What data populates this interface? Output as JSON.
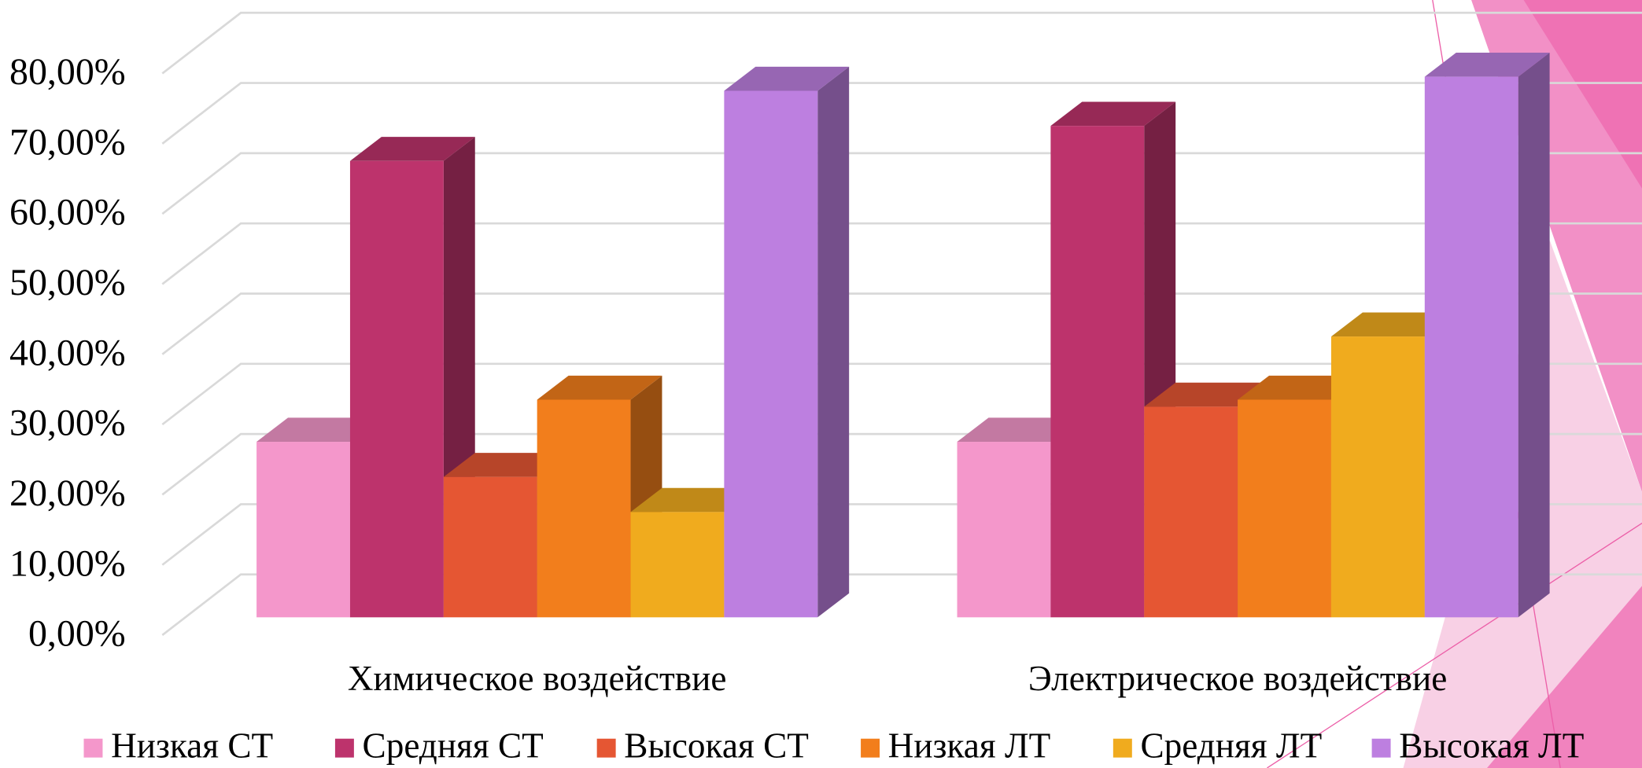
{
  "chart_data": {
    "type": "bar3d",
    "categories": [
      "Химическое воздействие",
      "Электрическое воздействие"
    ],
    "series": [
      {
        "name": "Низкая СТ",
        "color": "#f497cb",
        "values": [
          25,
          25
        ]
      },
      {
        "name": "Средняя СТ",
        "color": "#bd336c",
        "values": [
          65,
          70
        ]
      },
      {
        "name": "Высокая СТ",
        "color": "#e55633",
        "values": [
          20,
          30
        ]
      },
      {
        "name": "Низкая ЛТ",
        "color": "#f27e1c",
        "values": [
          31,
          31
        ]
      },
      {
        "name": "Средняя ЛТ",
        "color": "#f0ab1e",
        "values": [
          15,
          40
        ]
      },
      {
        "name": "Высокая ЛТ",
        "color": "#bd7fe0",
        "values": [
          75,
          77
        ]
      }
    ],
    "ylim": [
      0,
      80
    ],
    "yticks": [
      {
        "value": 0,
        "label": "0,00%"
      },
      {
        "value": 10,
        "label": "10,00%"
      },
      {
        "value": 20,
        "label": "20,00%"
      },
      {
        "value": 30,
        "label": "30,00%"
      },
      {
        "value": 40,
        "label": "40,00%"
      },
      {
        "value": 50,
        "label": "50,00%"
      },
      {
        "value": 60,
        "label": "60,00%"
      },
      {
        "value": 70,
        "label": "70,00%"
      },
      {
        "value": 80,
        "label": "80,00%"
      }
    ],
    "grid": true,
    "legend": "bottom"
  }
}
